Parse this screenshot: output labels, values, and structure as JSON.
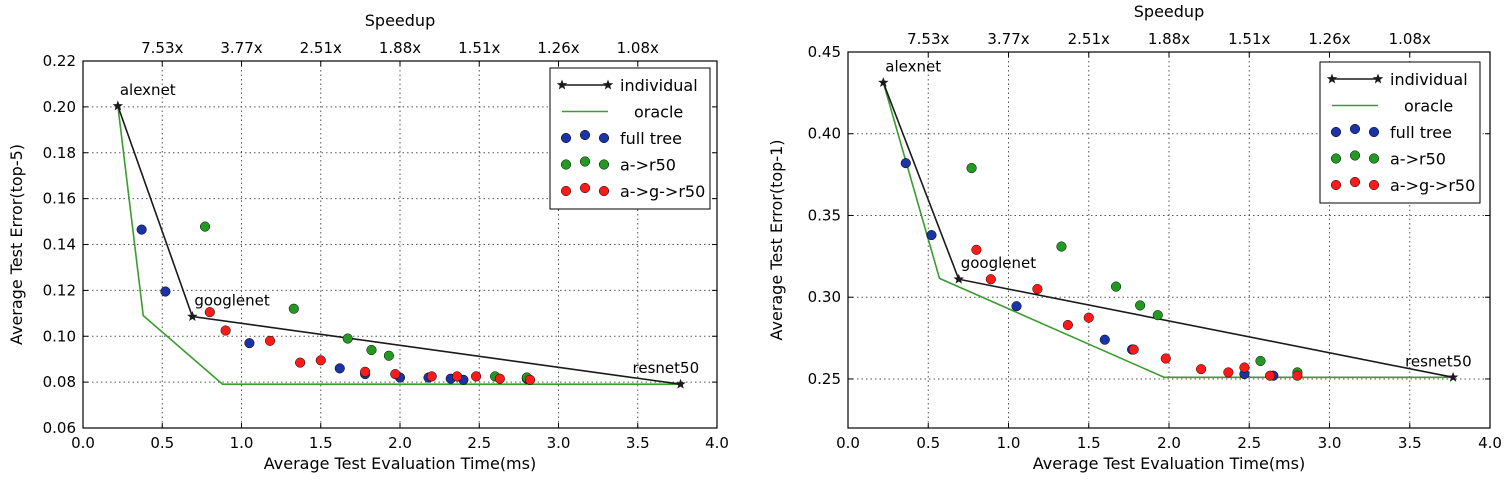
{
  "chart_data": [
    {
      "type": "scatter",
      "xlabel": "Average Test Evaluation Time(ms)",
      "ylabel": "Average Test Error(top-5)",
      "top_axis_label": "Speedup",
      "xlim": [
        0.0,
        4.0
      ],
      "ylim": [
        0.06,
        0.22
      ],
      "x_ticks": [
        0.0,
        0.5,
        1.0,
        1.5,
        2.0,
        2.5,
        3.0,
        3.5,
        4.0
      ],
      "x_tick_labels": [
        "0.0",
        "0.5",
        "1.0",
        "1.5",
        "2.0",
        "2.5",
        "3.0",
        "3.5",
        "4.0"
      ],
      "y_ticks": [
        0.06,
        0.08,
        0.1,
        0.12,
        0.14,
        0.16,
        0.18,
        0.2,
        0.22
      ],
      "y_tick_labels": [
        "0.06",
        "0.08",
        "0.10",
        "0.12",
        "0.14",
        "0.16",
        "0.18",
        "0.20",
        "0.22"
      ],
      "top_ticks": [
        {
          "x": 0.5,
          "label": "7.53x"
        },
        {
          "x": 1.0,
          "label": "3.77x"
        },
        {
          "x": 1.5,
          "label": "2.51x"
        },
        {
          "x": 2.0,
          "label": "1.88x"
        },
        {
          "x": 2.5,
          "label": "1.51x"
        },
        {
          "x": 3.0,
          "label": "1.26x"
        },
        {
          "x": 3.5,
          "label": "1.08x"
        }
      ],
      "grid": true,
      "legend_position": "top-right",
      "series": [
        {
          "name": "individual",
          "kind": "line-star",
          "color": "#1a1a1a",
          "points": [
            [
              0.22,
              0.2004
            ],
            [
              0.69,
              0.1086
            ],
            [
              3.77,
              0.0791
            ]
          ]
        },
        {
          "name": "oracle",
          "kind": "line",
          "color": "#3a9b2e",
          "points": [
            [
              0.22,
              0.2004
            ],
            [
              0.38,
              0.109
            ],
            [
              0.88,
              0.0791
            ],
            [
              3.77,
              0.0791
            ]
          ]
        },
        {
          "name": "full tree",
          "kind": "dots",
          "color": "#1a33a6",
          "points": [
            [
              0.37,
              0.1465
            ],
            [
              0.52,
              0.1195
            ],
            [
              1.05,
              0.097
            ],
            [
              1.62,
              0.086
            ],
            [
              1.78,
              0.0835
            ],
            [
              2.0,
              0.082
            ],
            [
              2.18,
              0.082
            ],
            [
              2.32,
              0.0815
            ],
            [
              2.4,
              0.081
            ],
            [
              2.8,
              0.0815
            ]
          ]
        },
        {
          "name": "a->r50",
          "kind": "dots",
          "color": "#229a22",
          "points": [
            [
              0.77,
              0.1478
            ],
            [
              1.33,
              0.112
            ],
            [
              1.67,
              0.099
            ],
            [
              1.82,
              0.094
            ],
            [
              1.93,
              0.0915
            ],
            [
              2.6,
              0.0825
            ],
            [
              2.8,
              0.082
            ]
          ]
        },
        {
          "name": "a->g->r50",
          "kind": "dots",
          "color": "#ff1a1a",
          "points": [
            [
              0.8,
              0.1105
            ],
            [
              0.9,
              0.1025
            ],
            [
              1.18,
              0.098
            ],
            [
              1.37,
              0.0885
            ],
            [
              1.5,
              0.0895
            ],
            [
              1.78,
              0.0845
            ],
            [
              1.97,
              0.0835
            ],
            [
              2.2,
              0.0825
            ],
            [
              2.36,
              0.0825
            ],
            [
              2.48,
              0.0825
            ],
            [
              2.63,
              0.0815
            ],
            [
              2.82,
              0.081
            ]
          ]
        }
      ],
      "annotations": [
        {
          "text": "alexnet",
          "x": 0.22,
          "y": 0.2004,
          "anchor": "above-right"
        },
        {
          "text": "googlenet",
          "x": 0.69,
          "y": 0.1086,
          "anchor": "above-right"
        },
        {
          "text": "resnet50",
          "x": 3.77,
          "y": 0.0791,
          "anchor": "above-left"
        }
      ]
    },
    {
      "type": "scatter",
      "xlabel": "Average Test Evaluation Time(ms)",
      "ylabel": "Average Test Error(top-1)",
      "top_axis_label": "Speedup",
      "xlim": [
        0.0,
        4.0
      ],
      "ylim": [
        0.22,
        0.45
      ],
      "x_ticks": [
        0.0,
        0.5,
        1.0,
        1.5,
        2.0,
        2.5,
        3.0,
        3.5,
        4.0
      ],
      "x_tick_labels": [
        "0.0",
        "0.5",
        "1.0",
        "1.5",
        "2.0",
        "2.5",
        "3.0",
        "3.5",
        "4.0"
      ],
      "y_ticks": [
        0.25,
        0.3,
        0.35,
        0.4,
        0.45
      ],
      "y_tick_labels": [
        "0.25",
        "0.30",
        "0.35",
        "0.40",
        "0.45"
      ],
      "top_ticks": [
        {
          "x": 0.5,
          "label": "7.53x"
        },
        {
          "x": 1.0,
          "label": "3.77x"
        },
        {
          "x": 1.5,
          "label": "2.51x"
        },
        {
          "x": 2.0,
          "label": "1.88x"
        },
        {
          "x": 2.5,
          "label": "1.51x"
        },
        {
          "x": 3.0,
          "label": "1.26x"
        },
        {
          "x": 3.5,
          "label": "1.08x"
        }
      ],
      "grid": true,
      "legend_position": "top-right",
      "series": [
        {
          "name": "individual",
          "kind": "line-star",
          "color": "#1a1a1a",
          "points": [
            [
              0.22,
              0.4313
            ],
            [
              0.69,
              0.311
            ],
            [
              3.77,
              0.251
            ]
          ]
        },
        {
          "name": "oracle",
          "kind": "line",
          "color": "#3a9b2e",
          "points": [
            [
              0.22,
              0.4313
            ],
            [
              0.57,
              0.3115
            ],
            [
              1.97,
              0.251
            ],
            [
              3.77,
              0.251
            ]
          ]
        },
        {
          "name": "full tree",
          "kind": "dots",
          "color": "#1a33a6",
          "points": [
            [
              0.36,
              0.382
            ],
            [
              0.52,
              0.338
            ],
            [
              1.05,
              0.2945
            ],
            [
              1.6,
              0.274
            ],
            [
              1.77,
              0.268
            ],
            [
              2.47,
              0.253
            ],
            [
              2.65,
              0.252
            ]
          ]
        },
        {
          "name": "a->r50",
          "kind": "dots",
          "color": "#229a22",
          "points": [
            [
              0.77,
              0.379
            ],
            [
              1.33,
              0.331
            ],
            [
              1.67,
              0.3065
            ],
            [
              1.82,
              0.295
            ],
            [
              1.93,
              0.289
            ],
            [
              2.57,
              0.261
            ],
            [
              2.8,
              0.254
            ]
          ]
        },
        {
          "name": "a->g->r50",
          "kind": "dots",
          "color": "#ff1a1a",
          "points": [
            [
              0.8,
              0.329
            ],
            [
              0.89,
              0.311
            ],
            [
              1.18,
              0.305
            ],
            [
              1.37,
              0.283
            ],
            [
              1.5,
              0.2875
            ],
            [
              1.78,
              0.268
            ],
            [
              1.98,
              0.2625
            ],
            [
              2.2,
              0.256
            ],
            [
              2.37,
              0.254
            ],
            [
              2.47,
              0.257
            ],
            [
              2.63,
              0.252
            ],
            [
              2.8,
              0.252
            ]
          ]
        }
      ],
      "annotations": [
        {
          "text": "alexnet",
          "x": 0.22,
          "y": 0.4313,
          "anchor": "above-right"
        },
        {
          "text": "googlenet",
          "x": 0.69,
          "y": 0.311,
          "anchor": "above-right"
        },
        {
          "text": "resnet50",
          "x": 3.77,
          "y": 0.251,
          "anchor": "above-left"
        }
      ]
    }
  ]
}
